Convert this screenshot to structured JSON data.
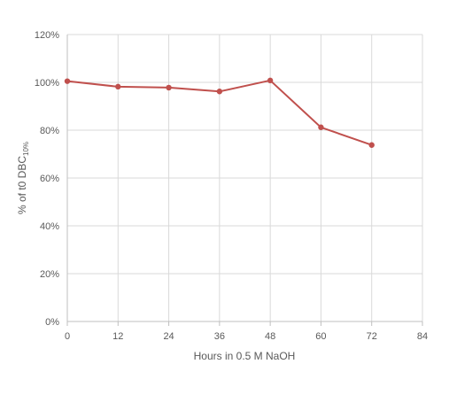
{
  "chart_data": {
    "type": "line",
    "title": "",
    "xlabel": "Hours in 0.5 M NaOH",
    "ylabel": {
      "main": "% of t0 DBC",
      "subscript": "10%"
    },
    "xlim": [
      0,
      84
    ],
    "ylim": [
      0,
      120
    ],
    "xticks": [
      "0",
      "12",
      "24",
      "36",
      "48",
      "60",
      "72",
      "84"
    ],
    "yticks": [
      "0%",
      "20%",
      "40%",
      "60%",
      "80%",
      "100%",
      "120%"
    ],
    "grid": true,
    "legend": "none",
    "series": [
      {
        "color": "#c0504d",
        "x": [
          0,
          12,
          24,
          36,
          48,
          60,
          72
        ],
        "y": [
          100.5,
          98.2,
          97.8,
          96.2,
          100.8,
          81.2,
          73.8
        ]
      }
    ]
  }
}
